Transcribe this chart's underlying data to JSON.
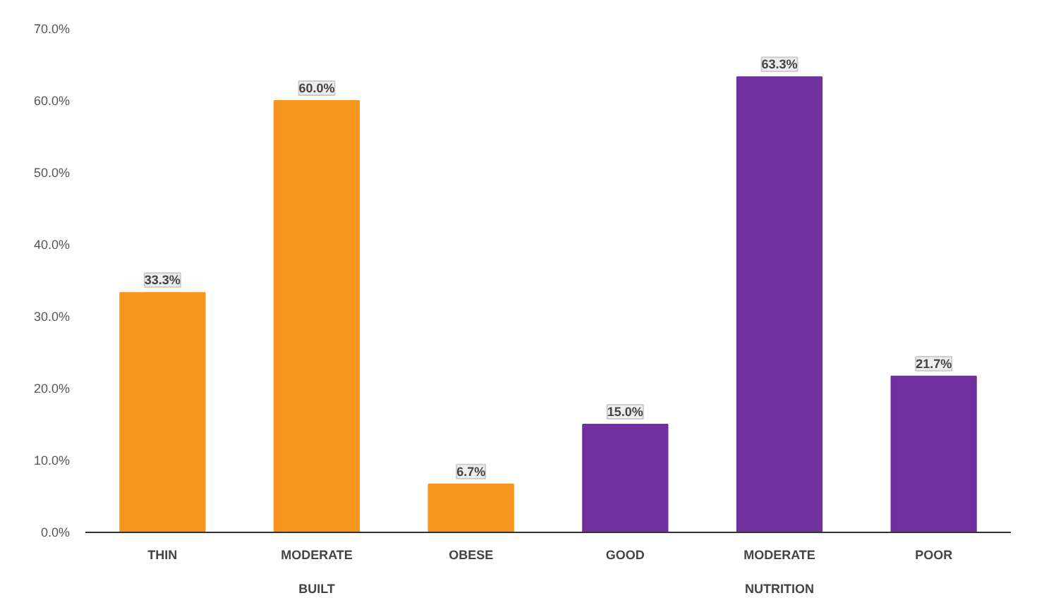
{
  "chart_data": {
    "type": "bar",
    "categories": [
      "THIN",
      "MODERATE",
      "OBESE",
      "GOOD",
      "MODERATE",
      "POOR"
    ],
    "series": [
      {
        "color": "#f7941d",
        "values": [
          33.3,
          60.0,
          6.7,
          null,
          null,
          null
        ],
        "value_labels": [
          "33.3%",
          "60.0%",
          "6.7%",
          null,
          null,
          null
        ]
      },
      {
        "color": "#7030a0",
        "values": [
          null,
          null,
          null,
          15.0,
          63.3,
          21.7
        ],
        "value_labels": [
          null,
          null,
          null,
          "15.0%",
          "63.3%",
          "21.7%"
        ]
      }
    ],
    "annotations": [
      "BUILT",
      "NUTRITION"
    ],
    "ylim": [
      0,
      70
    ],
    "yticks": [
      {
        "value": 0,
        "label": "0.0%"
      },
      {
        "value": 10,
        "label": "10.0%"
      },
      {
        "value": 20,
        "label": "20.0%"
      },
      {
        "value": 30,
        "label": "30.0%"
      },
      {
        "value": 40,
        "label": "40.0%"
      },
      {
        "value": 50,
        "label": "50.0%"
      },
      {
        "value": 60,
        "label": "60.0%"
      },
      {
        "value": 70,
        "label": "70.0%"
      }
    ],
    "grid": false
  }
}
